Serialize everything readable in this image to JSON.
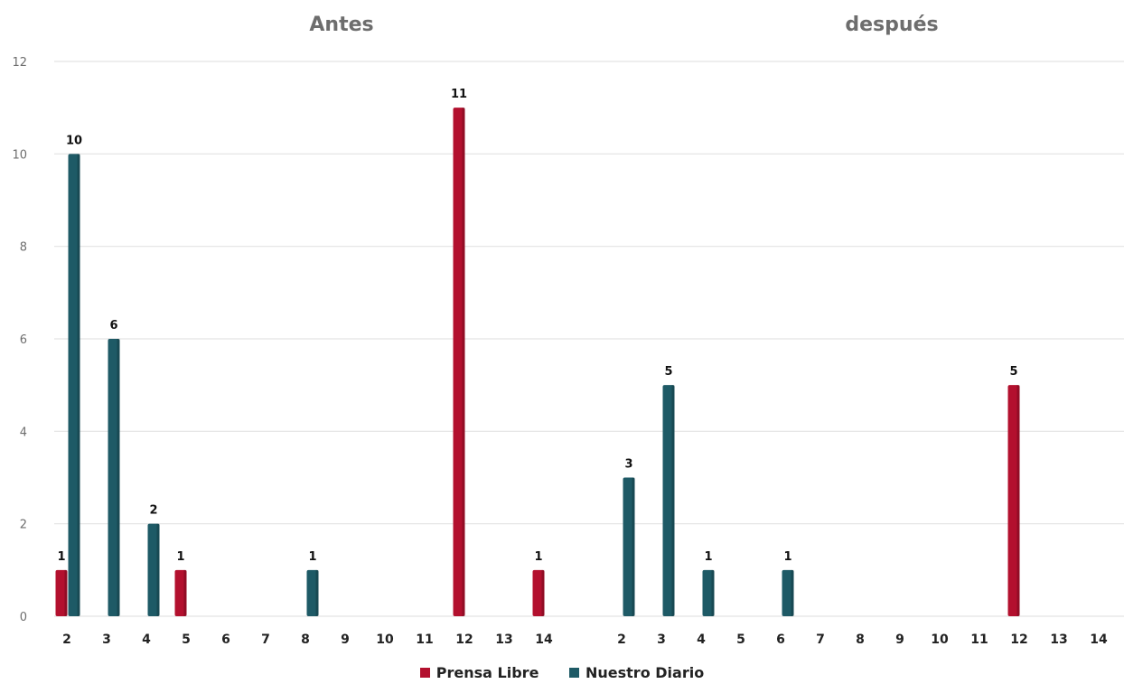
{
  "chart_data": {
    "type": "bar",
    "ylim": [
      0,
      12
    ],
    "yticks": [
      "0",
      "2",
      "4",
      "6",
      "8",
      "10",
      "12"
    ],
    "grid": true,
    "legend_position": "bottom-center",
    "legend": [
      {
        "name": "Prensa Libre",
        "color": "#b3102e"
      },
      {
        "name": "Nuestro Diario",
        "color": "#1e5a66"
      }
    ],
    "panels": [
      {
        "title": "Antes",
        "categories": [
          "2",
          "3",
          "4",
          "5",
          "6",
          "7",
          "8",
          "9",
          "10",
          "11",
          "12",
          "13",
          "14"
        ],
        "series": [
          {
            "name": "Prensa Libre",
            "values": [
              1,
              0,
              0,
              1,
              0,
              0,
              0,
              0,
              0,
              0,
              11,
              0,
              1
            ]
          },
          {
            "name": "Nuestro Diario",
            "values": [
              10,
              6,
              2,
              0,
              0,
              0,
              1,
              0,
              0,
              0,
              0,
              0,
              0
            ]
          }
        ]
      },
      {
        "title": "después",
        "categories": [
          "2",
          "3",
          "4",
          "5",
          "6",
          "7",
          "8",
          "9",
          "10",
          "11",
          "12",
          "13",
          "14"
        ],
        "series": [
          {
            "name": "Prensa Libre",
            "values": [
              0,
              0,
              0,
              0,
              0,
              0,
              0,
              0,
              0,
              0,
              5,
              0,
              0
            ]
          },
          {
            "name": "Nuestro Diario",
            "values": [
              3,
              5,
              1,
              0,
              1,
              0,
              0,
              0,
              0,
              0,
              0,
              0,
              0
            ]
          }
        ]
      }
    ]
  }
}
